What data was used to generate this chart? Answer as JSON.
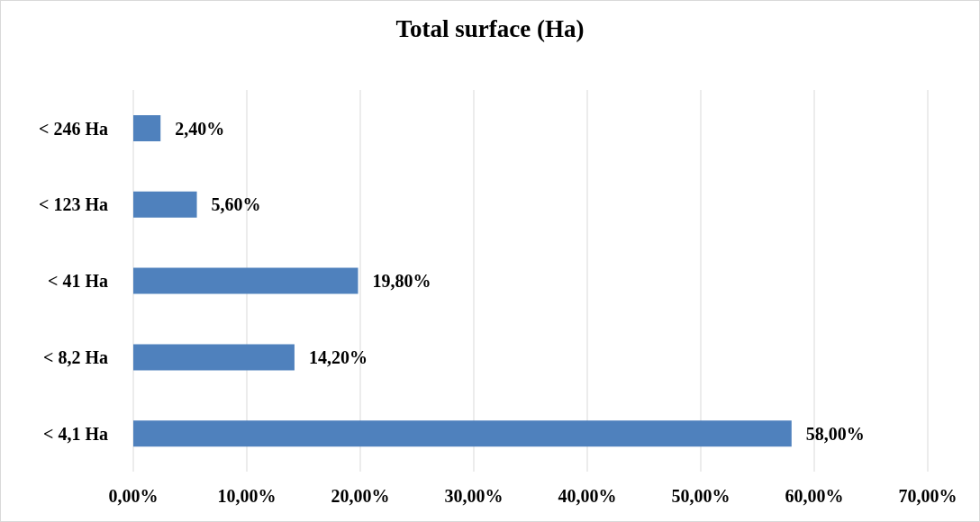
{
  "chart_data": {
    "type": "bar",
    "orientation": "horizontal",
    "title": "Total surface (Ha)",
    "categories": [
      "< 246 Ha",
      "< 123 Ha",
      "< 41 Ha",
      "< 8,2 Ha",
      "< 4,1 Ha"
    ],
    "values": [
      2.4,
      5.6,
      19.8,
      14.2,
      58
    ],
    "value_labels": [
      "2,40%",
      "5,60%",
      "19,80%",
      "14,20%",
      "58,00%"
    ],
    "color": "#4f81bd",
    "xlim": [
      0,
      70
    ],
    "xticks": [
      {
        "value": 0,
        "label": "0,00%"
      },
      {
        "value": 10,
        "label": "10,00%"
      },
      {
        "value": 20,
        "label": "20,00%"
      },
      {
        "value": 30,
        "label": "30,00%"
      },
      {
        "value": 40,
        "label": "40,00%"
      },
      {
        "value": 50,
        "label": "50,00%"
      },
      {
        "value": 60,
        "label": "60,00%"
      },
      {
        "value": 70,
        "label": "70,00%"
      }
    ],
    "grid": "x"
  }
}
